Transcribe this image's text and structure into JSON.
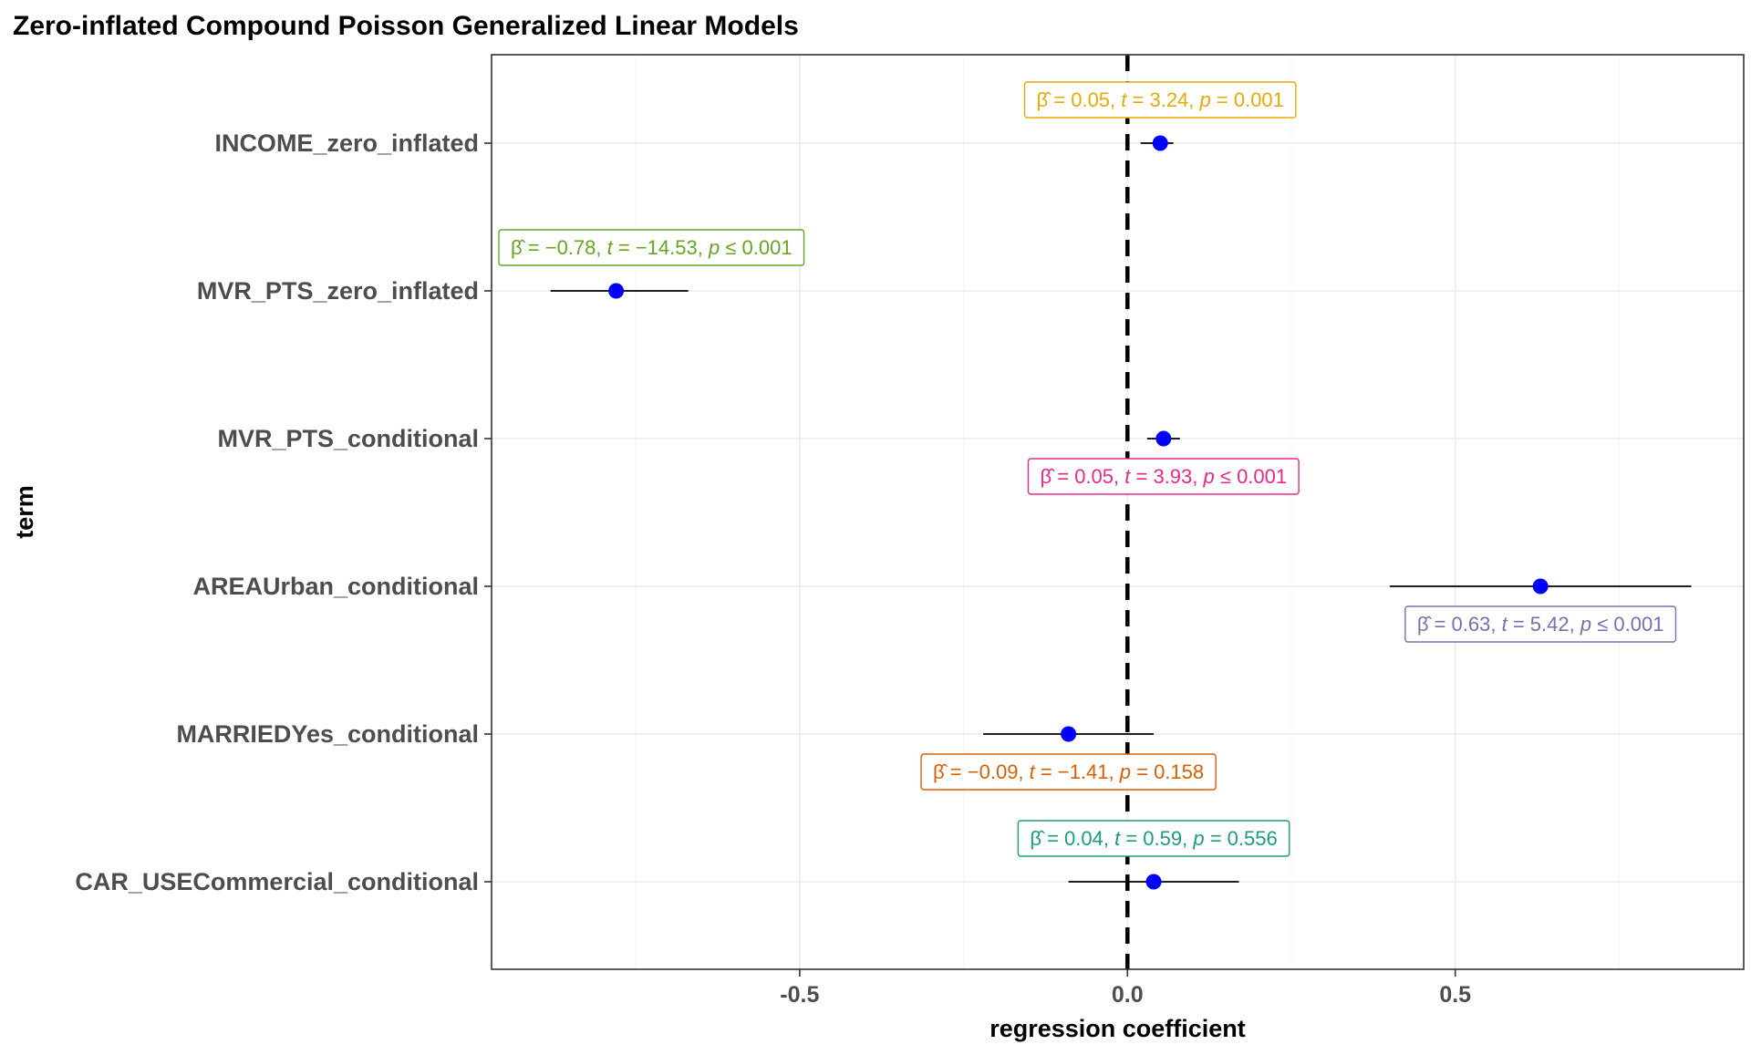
{
  "chart_data": {
    "type": "scatter",
    "title": "Zero-inflated Compound Poisson Generalized Linear Models",
    "xlabel": "regression coefficient",
    "ylabel": "term",
    "xlim": [
      -0.97,
      0.94
    ],
    "x_ticks": [
      -0.5,
      0.0,
      0.5
    ],
    "x_tick_labels": [
      "-0.5",
      "0.0",
      "0.5"
    ],
    "reference_line": 0.0,
    "grid": true,
    "point_color": "#0000ff",
    "terms": [
      {
        "term": "INCOME_zero_inflated",
        "estimate": 0.05,
        "ci_low": 0.02,
        "ci_high": 0.07,
        "label": {
          "beta": "0.05",
          "t": "3.24",
          "p_op": "=",
          "p": "0.001"
        },
        "label_color": "#e6ab02",
        "label_pos": "above"
      },
      {
        "term": "MVR_PTS_zero_inflated",
        "estimate": -0.78,
        "ci_low": -0.88,
        "ci_high": -0.67,
        "label": {
          "beta": "−0.78",
          "t": "−14.53",
          "p_op": "≤",
          "p": "0.001"
        },
        "label_color": "#66a61e",
        "label_pos": "above"
      },
      {
        "term": "MVR_PTS_conditional",
        "estimate": 0.055,
        "ci_low": 0.03,
        "ci_high": 0.08,
        "label": {
          "beta": "0.05",
          "t": "3.93",
          "p_op": "≤",
          "p": "0.001"
        },
        "label_color": "#e7298a",
        "label_pos": "below"
      },
      {
        "term": "AREAUrban_conditional",
        "estimate": 0.63,
        "ci_low": 0.4,
        "ci_high": 0.86,
        "label": {
          "beta": "0.63",
          "t": "5.42",
          "p_op": "≤",
          "p": "0.001"
        },
        "label_color": "#7570b3",
        "label_pos": "below"
      },
      {
        "term": "MARRIEDYes_conditional",
        "estimate": -0.09,
        "ci_low": -0.22,
        "ci_high": 0.04,
        "label": {
          "beta": "−0.09",
          "t": "−1.41",
          "p_op": "=",
          "p": "0.158"
        },
        "label_color": "#d95f02",
        "label_pos": "below"
      },
      {
        "term": "CAR_USECommercial_conditional",
        "estimate": 0.04,
        "ci_low": -0.09,
        "ci_high": 0.17,
        "label": {
          "beta": "0.04",
          "t": "0.59",
          "p_op": "=",
          "p": "0.556"
        },
        "label_color": "#1b9e77",
        "label_pos": "above"
      }
    ]
  }
}
